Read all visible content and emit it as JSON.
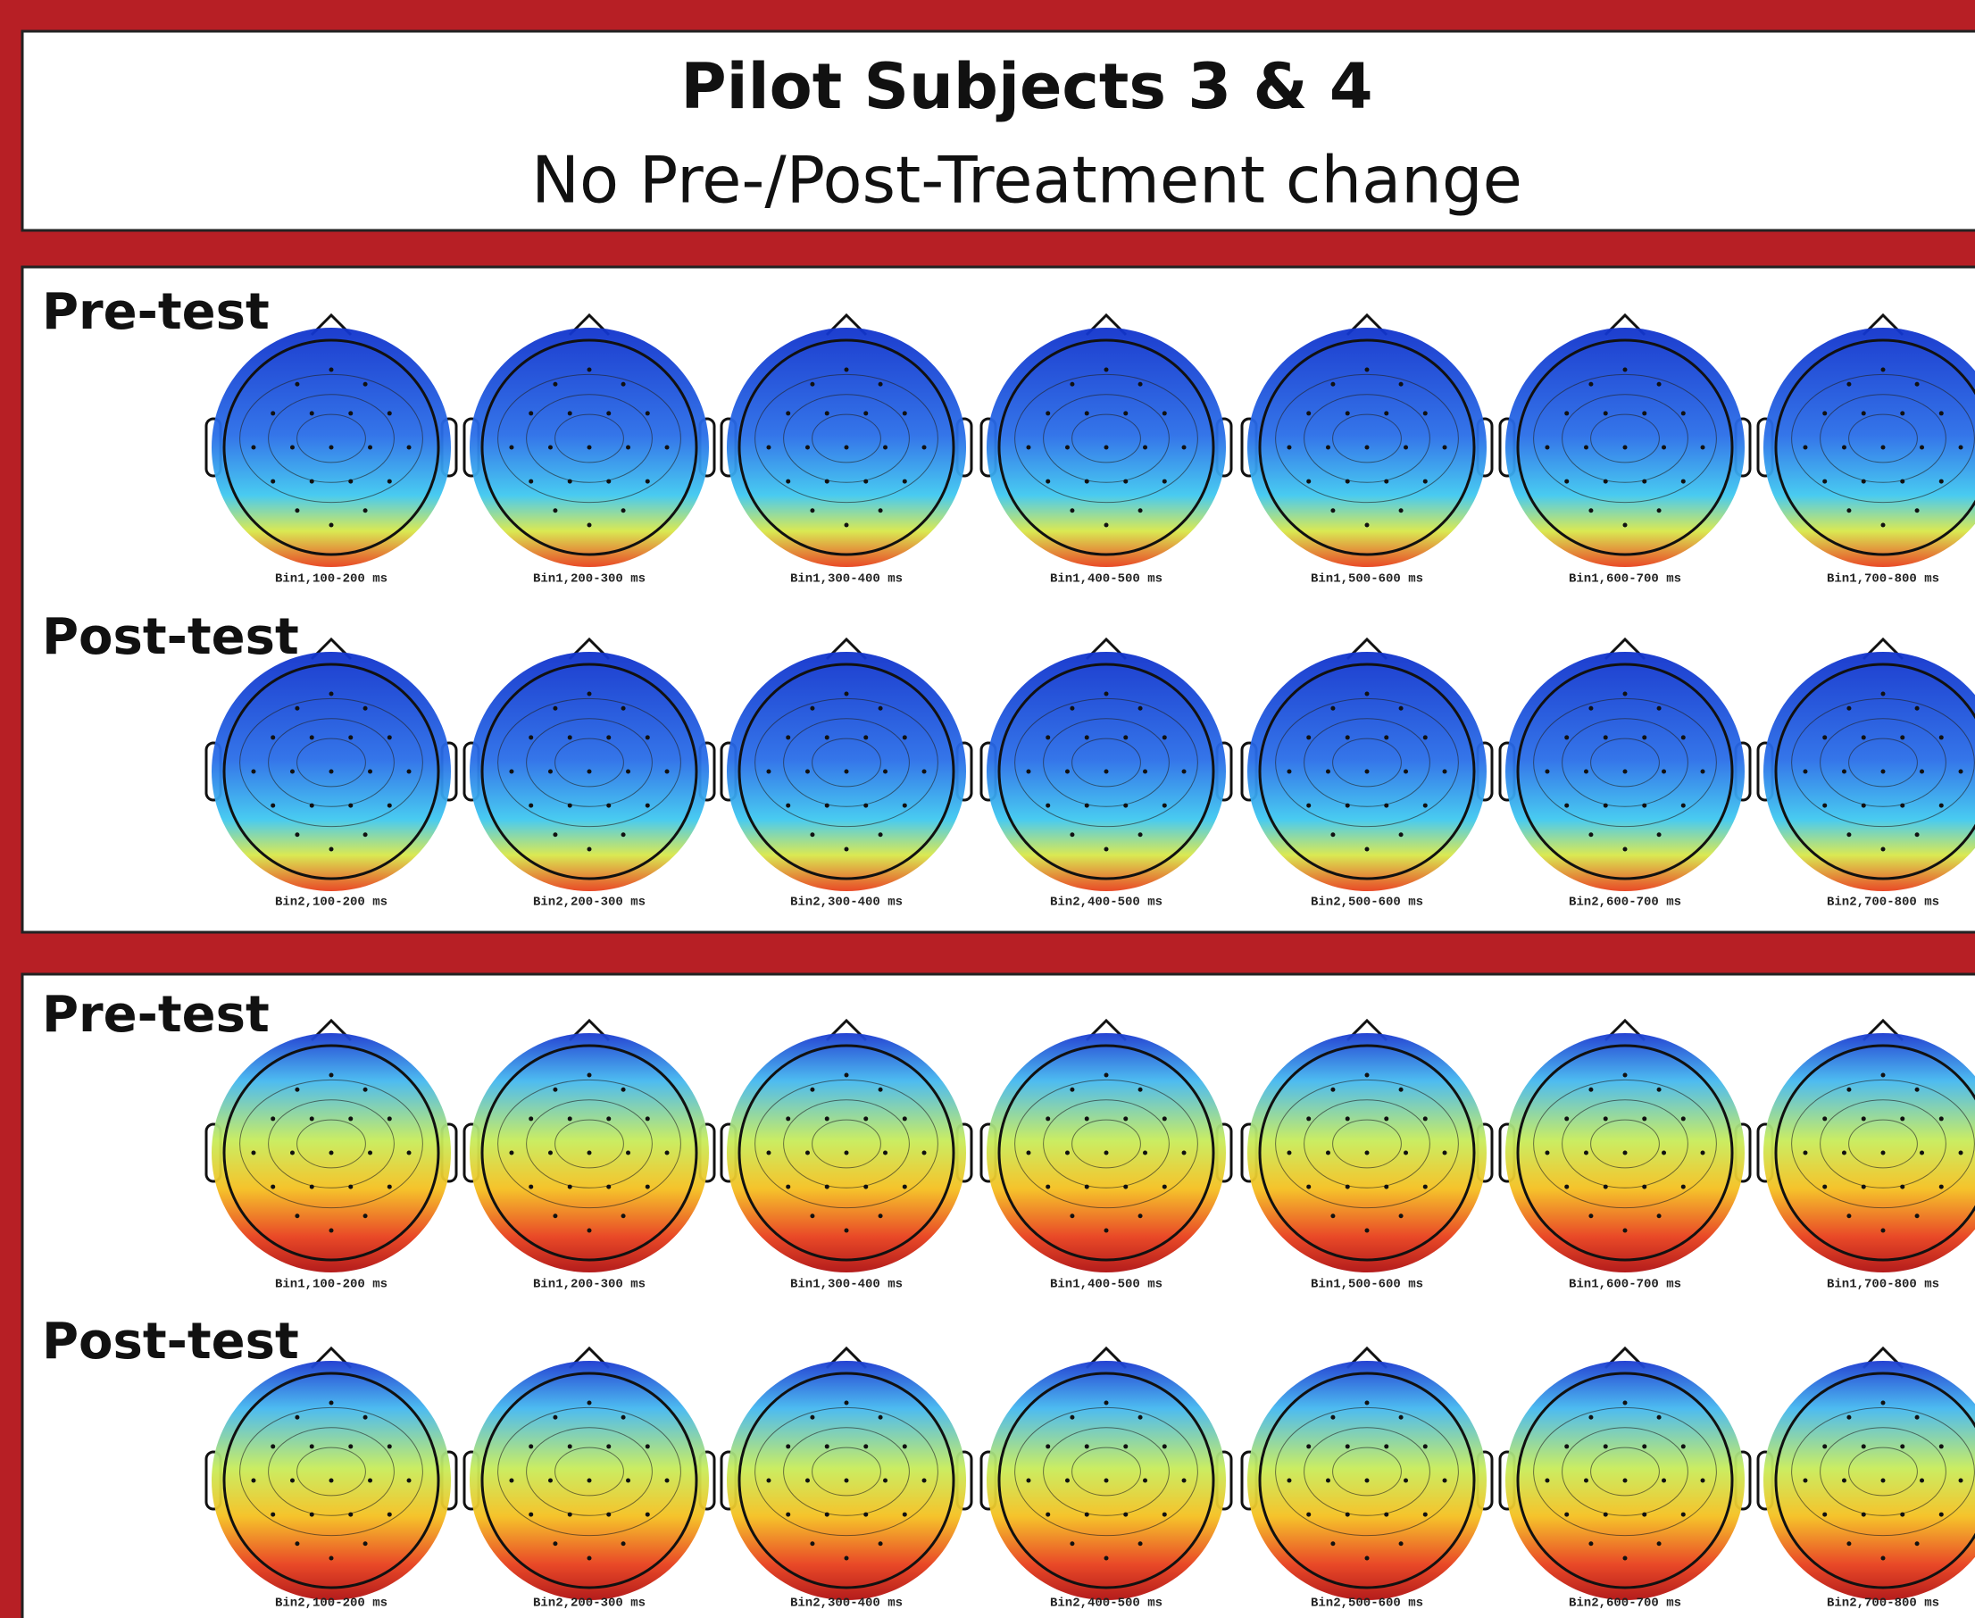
{
  "header": {
    "title": "Pilot Subjects 3 & 4",
    "subtitle": "No Pre-/Post-Treatment change"
  },
  "panels": [
    {
      "rows": [
        {
          "label": "Pre-test",
          "maps": [
            "Bin1,100-200 ms",
            "Bin1,200-300 ms",
            "Bin1,300-400 ms",
            "Bin1,400-500 ms",
            "Bin1,500-600 ms",
            "Bin1,600-700 ms",
            "Bin1,700-800 ms"
          ]
        },
        {
          "label": "Post-test",
          "maps": [
            "Bin2,100-200 ms",
            "Bin2,200-300 ms",
            "Bin2,300-400 ms",
            "Bin2,400-500 ms",
            "Bin2,500-600 ms",
            "Bin2,600-700 ms",
            "Bin2,700-800 ms"
          ]
        }
      ]
    },
    {
      "rows": [
        {
          "label": "Pre-test",
          "maps": [
            "Bin1,100-200 ms",
            "Bin1,200-300 ms",
            "Bin1,300-400 ms",
            "Bin1,400-500 ms",
            "Bin1,500-600 ms",
            "Bin1,600-700 ms",
            "Bin1,700-800 ms"
          ]
        },
        {
          "label": "Post-test",
          "maps": [
            "Bin2,100-200 ms",
            "Bin2,200-300 ms",
            "Bin2,300-400 ms",
            "Bin2,400-500 ms",
            "Bin2,500-600 ms",
            "Bin2,600-700 ms",
            "Bin2,700-800 ms"
          ]
        }
      ]
    }
  ]
}
